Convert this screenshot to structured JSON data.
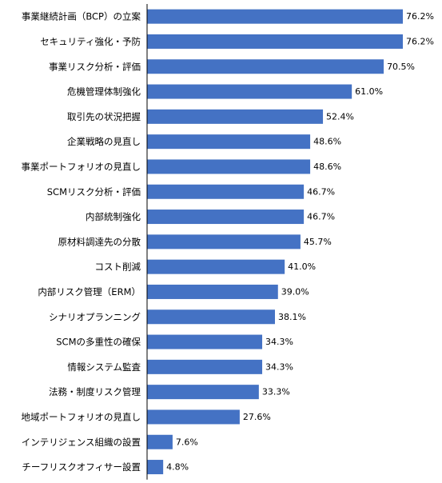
{
  "chart_data": {
    "type": "bar",
    "orientation": "horizontal",
    "title": "",
    "xlabel": "",
    "ylabel": "",
    "xlim": [
      0,
      100
    ],
    "grid": false,
    "legend": "none",
    "value_suffix": "%",
    "bar_color": "#4472C4",
    "axis_color": "#000000",
    "categories": [
      "事業継続計画（BCP）の立案",
      "セキュリティ強化・予防",
      "事業リスク分析・評価",
      "危機管理体制強化",
      "取引先の状況把握",
      "企業戦略の見直し",
      "事業ポートフォリオの見直し",
      "SCMリスク分析・評価",
      "内部統制強化",
      "原材料調達先の分散",
      "コスト削減",
      "内部リスク管理（ERM）",
      "シナリオプランニング",
      "SCMの多重性の確保",
      "情報システム監査",
      "法務・制度リスク管理",
      "地域ポートフォリオの見直し",
      "インテリジェンス組織の設置",
      "チーフリスクオフィサー設置"
    ],
    "values": [
      76.2,
      76.2,
      70.5,
      61.0,
      52.4,
      48.6,
      48.6,
      46.7,
      46.7,
      45.7,
      41.0,
      39.0,
      38.1,
      34.3,
      34.3,
      33.3,
      27.6,
      7.6,
      4.8
    ]
  }
}
